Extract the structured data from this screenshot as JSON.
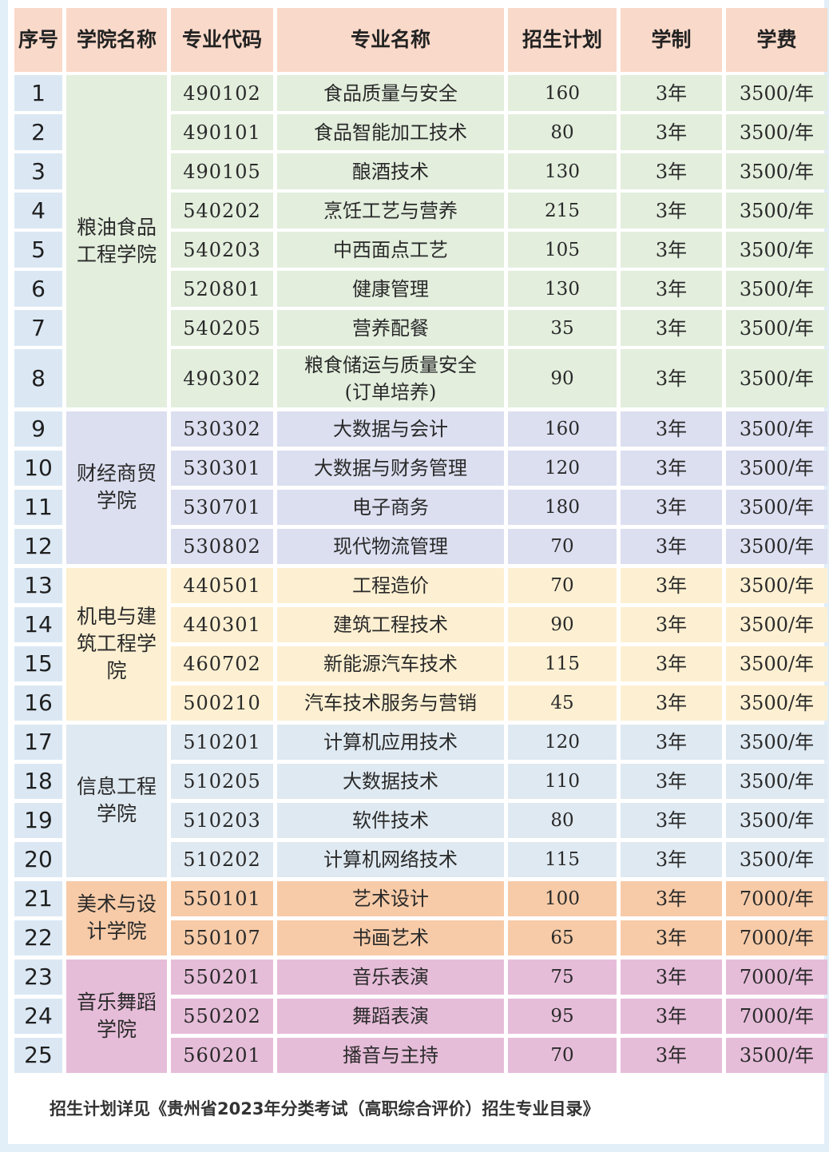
{
  "headers": [
    "序号",
    "学院名称",
    "专业代码",
    "专业名称",
    "招生计划",
    "学制",
    "学费"
  ],
  "colors": {
    "header": "#f9d9c9",
    "groups": [
      "#e3eedd",
      "#dcdff0",
      "#fdf0d2",
      "#dfe9f1",
      "#f7cba8",
      "#e6bdd9"
    ],
    "index_column": "#dbe8f4",
    "frame": "#e2eef8"
  },
  "departments": [
    "粮油食品\n工程学院",
    "财经商贸\n学院",
    "机电与建\n筑工程学\n院",
    "信息工程\n学院",
    "美术与设\n计学院",
    "音乐舞蹈\n学院"
  ],
  "rows": [
    {
      "index": "1",
      "code": "490102",
      "major": "食品质量与安全",
      "plan": "160",
      "duration": "3年",
      "fee": "3500/年",
      "dept": 0
    },
    {
      "index": "2",
      "code": "490101",
      "major": "食品智能加工技术",
      "plan": "80",
      "duration": "3年",
      "fee": "3500/年",
      "dept": 0
    },
    {
      "index": "3",
      "code": "490105",
      "major": "酿酒技术",
      "plan": "130",
      "duration": "3年",
      "fee": "3500/年",
      "dept": 0
    },
    {
      "index": "4",
      "code": "540202",
      "major": "烹饪工艺与营养",
      "plan": "215",
      "duration": "3年",
      "fee": "3500/年",
      "dept": 0
    },
    {
      "index": "5",
      "code": "540203",
      "major": "中西面点工艺",
      "plan": "105",
      "duration": "3年",
      "fee": "3500/年",
      "dept": 0
    },
    {
      "index": "6",
      "code": "520801",
      "major": "健康管理",
      "plan": "130",
      "duration": "3年",
      "fee": "3500/年",
      "dept": 0
    },
    {
      "index": "7",
      "code": "540205",
      "major": "营养配餐",
      "plan": "35",
      "duration": "3年",
      "fee": "3500/年",
      "dept": 0
    },
    {
      "index": "8",
      "code": "490302",
      "major": "粮食储运与质量安全\n(订单培养)",
      "plan": "90",
      "duration": "3年",
      "fee": "3500/年",
      "dept": 0
    },
    {
      "index": "9",
      "code": "530302",
      "major": "大数据与会计",
      "plan": "160",
      "duration": "3年",
      "fee": "3500/年",
      "dept": 1
    },
    {
      "index": "10",
      "code": "530301",
      "major": "大数据与财务管理",
      "plan": "120",
      "duration": "3年",
      "fee": "3500/年",
      "dept": 1
    },
    {
      "index": "11",
      "code": "530701",
      "major": "电子商务",
      "plan": "180",
      "duration": "3年",
      "fee": "3500/年",
      "dept": 1
    },
    {
      "index": "12",
      "code": "530802",
      "major": "现代物流管理",
      "plan": "70",
      "duration": "3年",
      "fee": "3500/年",
      "dept": 1
    },
    {
      "index": "13",
      "code": "440501",
      "major": "工程造价",
      "plan": "70",
      "duration": "3年",
      "fee": "3500/年",
      "dept": 2
    },
    {
      "index": "14",
      "code": "440301",
      "major": "建筑工程技术",
      "plan": "90",
      "duration": "3年",
      "fee": "3500/年",
      "dept": 2
    },
    {
      "index": "15",
      "code": "460702",
      "major": "新能源汽车技术",
      "plan": "115",
      "duration": "3年",
      "fee": "3500/年",
      "dept": 2
    },
    {
      "index": "16",
      "code": "500210",
      "major": "汽车技术服务与营销",
      "plan": "45",
      "duration": "3年",
      "fee": "3500/年",
      "dept": 2
    },
    {
      "index": "17",
      "code": "510201",
      "major": "计算机应用技术",
      "plan": "120",
      "duration": "3年",
      "fee": "3500/年",
      "dept": 3
    },
    {
      "index": "18",
      "code": "510205",
      "major": "大数据技术",
      "plan": "110",
      "duration": "3年",
      "fee": "3500/年",
      "dept": 3
    },
    {
      "index": "19",
      "code": "510203",
      "major": "软件技术",
      "plan": "80",
      "duration": "3年",
      "fee": "3500/年",
      "dept": 3
    },
    {
      "index": "20",
      "code": "510202",
      "major": "计算机网络技术",
      "plan": "115",
      "duration": "3年",
      "fee": "3500/年",
      "dept": 3
    },
    {
      "index": "21",
      "code": "550101",
      "major": "艺术设计",
      "plan": "100",
      "duration": "3年",
      "fee": "7000/年",
      "dept": 4
    },
    {
      "index": "22",
      "code": "550107",
      "major": "书画艺术",
      "plan": "65",
      "duration": "3年",
      "fee": "7000/年",
      "dept": 4
    },
    {
      "index": "23",
      "code": "550201",
      "major": "音乐表演",
      "plan": "75",
      "duration": "3年",
      "fee": "7000/年",
      "dept": 5
    },
    {
      "index": "24",
      "code": "550202",
      "major": "舞蹈表演",
      "plan": "95",
      "duration": "3年",
      "fee": "7000/年",
      "dept": 5
    },
    {
      "index": "25",
      "code": "560201",
      "major": "播音与主持",
      "plan": "70",
      "duration": "3年",
      "fee": "3500/年",
      "dept": 5
    }
  ],
  "footer": "招生计划详见《贵州省2023年分类考试（高职综合评价）招生专业目录》"
}
